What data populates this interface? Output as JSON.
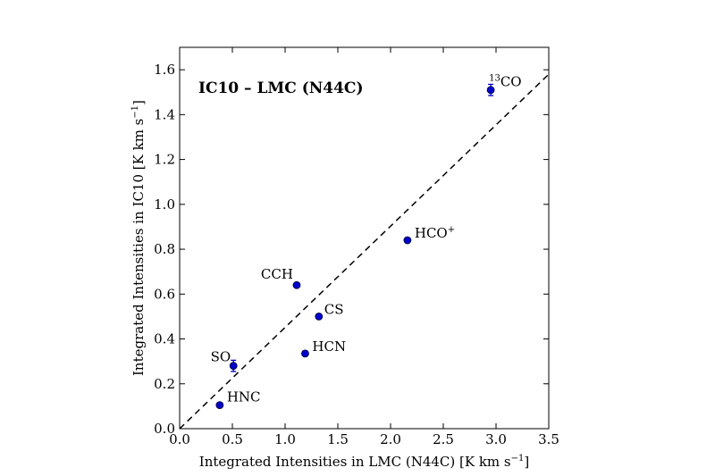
{
  "chart_data": {
    "type": "scatter",
    "title": "IC10 – LMC (N44C)",
    "xlabel": "Integrated Intensities in LMC (N44C) [K km s⁻¹]",
    "ylabel": "Integrated Intensities in IC10 [K km s⁻¹]",
    "xlim": [
      0.0,
      3.5
    ],
    "ylim": [
      0.0,
      1.7
    ],
    "xticks": [
      "0.0",
      "0.5",
      "1.0",
      "1.5",
      "2.0",
      "2.5",
      "3.0",
      "3.5"
    ],
    "yticks": [
      "0.0",
      "0.2",
      "0.4",
      "0.6",
      "0.8",
      "1.0",
      "1.2",
      "1.4",
      "1.6"
    ],
    "grid": false,
    "marker_color": "#0000cc",
    "points": [
      {
        "label": "13CO",
        "label_sup_prefix": "13",
        "label_base": "CO",
        "x": 2.95,
        "y": 1.51,
        "yerr": 0.025
      },
      {
        "label": "HCO+",
        "label_base": "HCO",
        "label_sup_suffix": "+",
        "x": 2.16,
        "y": 0.84,
        "yerr": 0
      },
      {
        "label": "CCH",
        "label_base": "CCH",
        "x": 1.11,
        "y": 0.64,
        "yerr": 0
      },
      {
        "label": "CS",
        "label_base": "CS",
        "x": 1.32,
        "y": 0.5,
        "yerr": 0
      },
      {
        "label": "HCN",
        "label_base": "HCN",
        "x": 1.19,
        "y": 0.335,
        "yerr": 0
      },
      {
        "label": "SO",
        "label_base": "SO",
        "x": 0.51,
        "y": 0.28,
        "yerr": 0.025
      },
      {
        "label": "HNC",
        "label_base": "HNC",
        "x": 0.38,
        "y": 0.105,
        "yerr": 0
      }
    ],
    "reference_line": {
      "style": "dashed",
      "x": [
        0.0,
        3.5
      ],
      "y": [
        0.0,
        1.58
      ]
    }
  }
}
